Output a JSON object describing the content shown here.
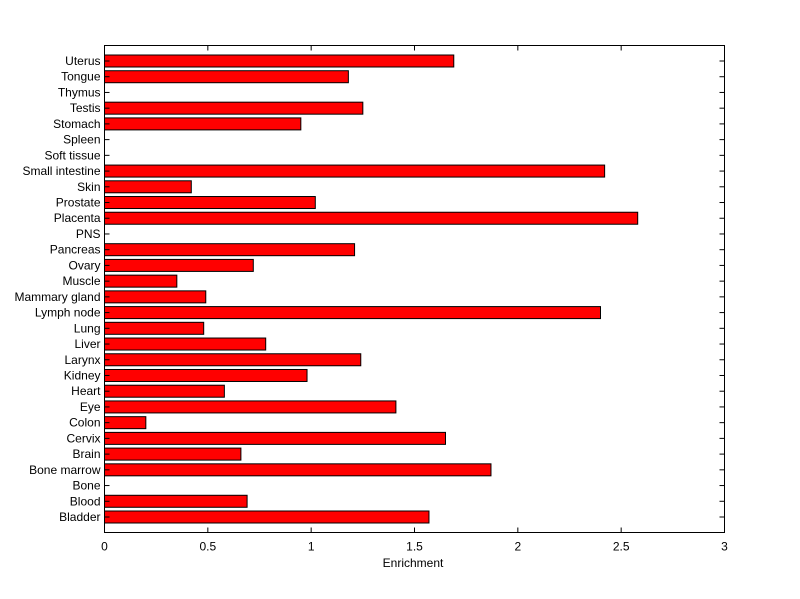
{
  "chart_data": {
    "type": "bar",
    "orientation": "horizontal",
    "categories": [
      "Uterus",
      "Tongue",
      "Thymus",
      "Testis",
      "Stomach",
      "Spleen",
      "Soft tissue",
      "Small intestine",
      "Skin",
      "Prostate",
      "Placenta",
      "PNS",
      "Pancreas",
      "Ovary",
      "Muscle",
      "Mammary gland",
      "Lymph node",
      "Lung",
      "Liver",
      "Larynx",
      "Kidney",
      "Heart",
      "Eye",
      "Colon",
      "Cervix",
      "Brain",
      "Bone marrow",
      "Bone",
      "Blood",
      "Bladder"
    ],
    "values": [
      1.69,
      1.18,
      0,
      1.25,
      0.95,
      0,
      0,
      2.42,
      0.42,
      1.02,
      2.58,
      0,
      1.21,
      0.72,
      0.35,
      0.49,
      2.4,
      0.48,
      0.78,
      1.24,
      0.98,
      0.58,
      1.41,
      0.2,
      1.65,
      0.66,
      1.87,
      0,
      0.69,
      1.57
    ],
    "xlabel": "Enrichment",
    "ylabel": "",
    "title": "",
    "xlim": [
      0,
      3
    ],
    "xticks": [
      0,
      0.5,
      1,
      1.5,
      2,
      2.5,
      3
    ],
    "xtick_labels": [
      "0",
      "0.5",
      "1",
      "1.5",
      "2",
      "2.5",
      "3"
    ],
    "grid": false,
    "bar_color": "#ff0000",
    "bar_edge_color": "#000000"
  }
}
